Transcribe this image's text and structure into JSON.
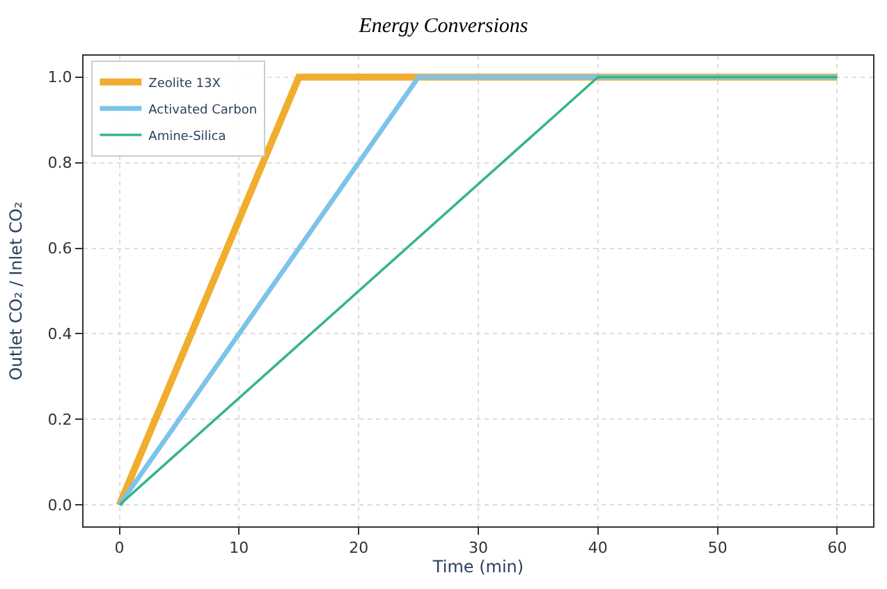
{
  "chart_data": {
    "type": "line",
    "title": "Energy Conversions",
    "xlabel": "Time (min)",
    "ylabel": "Outlet CO₂ / Inlet CO₂",
    "series": [
      {
        "name": "Zeolite 13X",
        "color": "#f0ad2e",
        "x": [
          0,
          15,
          60
        ],
        "values": [
          0,
          1,
          1
        ]
      },
      {
        "name": "Activated Carbon",
        "color": "#7cc3ea",
        "x": [
          0,
          25,
          60
        ],
        "values": [
          0,
          1,
          1
        ]
      },
      {
        "name": "Amine-Silica",
        "color": "#36b587",
        "x": [
          0,
          40,
          60
        ],
        "values": [
          0,
          1,
          1
        ]
      }
    ],
    "xlim": [
      -3,
      63
    ],
    "ylim": [
      -0.05,
      1.05
    ],
    "xticks": [
      0,
      10,
      20,
      30,
      40,
      50,
      60
    ],
    "yticks": [
      {
        "value": 0,
        "label": "0.0"
      },
      {
        "value": 0.2,
        "label": "0.2"
      },
      {
        "value": 0.4,
        "label": "0.4"
      },
      {
        "value": 0.6,
        "label": "0.6"
      },
      {
        "value": 0.8,
        "label": "0.8"
      },
      {
        "value": 1.0,
        "label": "1.0"
      }
    ],
    "grid": true,
    "legend": "top left",
    "marker": "none",
    "line_style": "solid"
  }
}
